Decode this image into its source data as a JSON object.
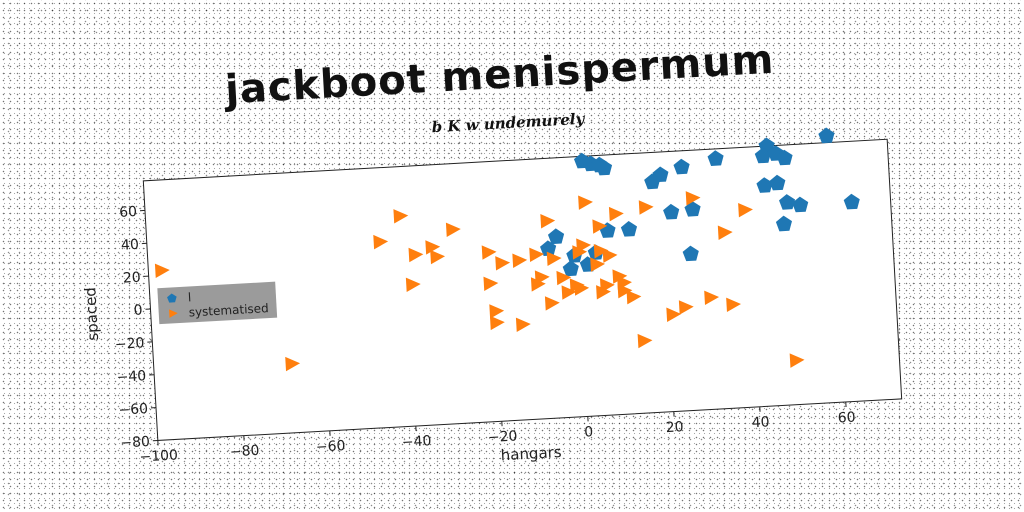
{
  "chart_data": {
    "type": "scatter",
    "title": "jackboot menispermum",
    "subtitle": "b K w undemurely",
    "xlabel": "hangars",
    "ylabel": "spaced",
    "xlim": [
      -100,
      73
    ],
    "ylim": [
      -80,
      78
    ],
    "xticks": [
      -100,
      -80,
      -60,
      -40,
      -20,
      0,
      20,
      40,
      60
    ],
    "yticks": [
      -80,
      -60,
      -40,
      -20,
      0,
      20,
      40,
      60
    ],
    "grid": false,
    "legend_position": "center-left",
    "series": [
      {
        "name": "l",
        "color": "#1f77b4",
        "marker": "pentagon",
        "points": [
          [
            2,
            75
          ],
          [
            4,
            73
          ],
          [
            6,
            72
          ],
          [
            7,
            70
          ],
          [
            20,
            64
          ],
          [
            25,
            68
          ],
          [
            33,
            72
          ],
          [
            45,
            78
          ],
          [
            44,
            72
          ],
          [
            47,
            73
          ],
          [
            49,
            70
          ],
          [
            59,
            82
          ],
          [
            18,
            60
          ],
          [
            44,
            54
          ],
          [
            47,
            55
          ],
          [
            49,
            43
          ],
          [
            52,
            41
          ],
          [
            64,
            41
          ],
          [
            22,
            41
          ],
          [
            27,
            42
          ],
          [
            12,
            32
          ],
          [
            7,
            32
          ],
          [
            -5,
            30
          ],
          [
            -7,
            23
          ],
          [
            -1,
            18
          ],
          [
            4,
            19
          ],
          [
            2,
            12
          ],
          [
            -2,
            10
          ],
          [
            26,
            15
          ],
          [
            48,
            30
          ]
        ]
      },
      {
        "name": "systematised",
        "color": "#ff7f0e",
        "marker": "triangle-right",
        "points": [
          [
            -97,
            23
          ],
          [
            -68,
            -38
          ],
          [
            -46,
            33
          ],
          [
            -41,
            48
          ],
          [
            -38,
            24
          ],
          [
            -34,
            28
          ],
          [
            -33,
            22
          ],
          [
            -29,
            38
          ],
          [
            -39,
            6
          ],
          [
            -21,
            23
          ],
          [
            -21,
            4
          ],
          [
            -18,
            16
          ],
          [
            -14,
            17
          ],
          [
            -10,
            20
          ],
          [
            -7,
            40
          ],
          [
            -6,
            17
          ],
          [
            -9,
            6
          ],
          [
            -4,
            5
          ],
          [
            -1,
            0
          ],
          [
            -3,
            -4
          ],
          [
            0,
            -2
          ],
          [
            0,
            20
          ],
          [
            1,
            24
          ],
          [
            2,
            50
          ],
          [
            4,
            12
          ],
          [
            5,
            35
          ],
          [
            5,
            20
          ],
          [
            7,
            17
          ],
          [
            9,
            4
          ],
          [
            6,
            -1
          ],
          [
            5,
            -5
          ],
          [
            10,
            0
          ],
          [
            10,
            -5
          ],
          [
            9,
            42
          ],
          [
            16,
            45
          ],
          [
            12,
            -9
          ],
          [
            21,
            -21
          ],
          [
            24,
            -17
          ],
          [
            27,
            49
          ],
          [
            30,
            -12
          ],
          [
            35,
            -17
          ],
          [
            34,
            27
          ],
          [
            39,
            40
          ],
          [
            49,
            -53
          ],
          [
            14,
            -36
          ],
          [
            -20,
            -20
          ],
          [
            -20,
            -13
          ],
          [
            -14,
            -22
          ],
          [
            -10,
            2
          ],
          [
            -7,
            -10
          ]
        ]
      }
    ]
  }
}
